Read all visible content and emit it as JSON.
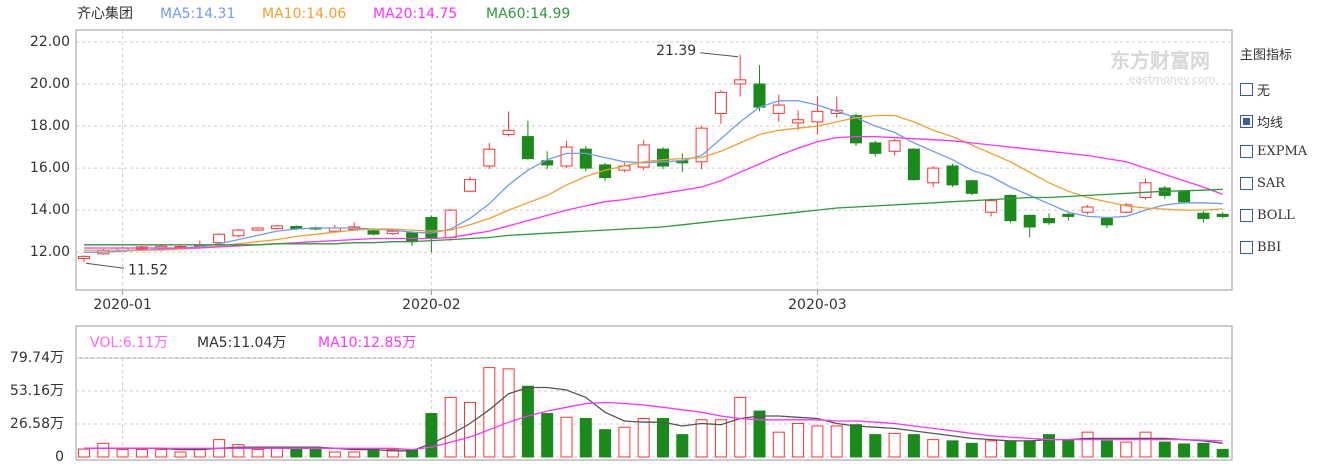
{
  "chart_data": [
    {
      "type": "candlestick",
      "title": "齐心集团",
      "categories": [
        null,
        null,
        "2020-01",
        null,
        null,
        null,
        null,
        null,
        null,
        null,
        null,
        null,
        null,
        null,
        null,
        null,
        null,
        null,
        "2020-02",
        null,
        null,
        null,
        null,
        null,
        null,
        null,
        null,
        null,
        null,
        null,
        null,
        null,
        null,
        null,
        null,
        null,
        null,
        null,
        "2020-03",
        null,
        null,
        null,
        null,
        null,
        null,
        null,
        null,
        null,
        null,
        null,
        null,
        null,
        null,
        null,
        null,
        null,
        null,
        null,
        null,
        null
      ],
      "open": [
        11.7,
        11.92,
        12.1,
        12.15,
        12.2,
        12.22,
        12.28,
        12.45,
        12.78,
        13.05,
        13.12,
        13.22,
        13.16,
        13.0,
        13.08,
        13.02,
        12.88,
        12.92,
        13.65,
        12.7,
        14.9,
        16.1,
        17.6,
        17.5,
        16.35,
        16.1,
        16.9,
        16.15,
        15.9,
        16.05,
        16.9,
        16.35,
        16.3,
        18.6,
        20.0,
        20.0,
        18.6,
        18.15,
        18.2,
        18.6,
        18.5,
        17.2,
        16.8,
        16.9,
        15.3,
        16.1,
        15.4,
        13.9,
        14.7,
        13.75,
        13.6,
        13.8,
        13.9,
        13.6,
        13.9,
        14.6,
        15.05,
        14.9,
        13.85,
        13.8
      ],
      "high": [
        11.85,
        12.15,
        12.25,
        12.3,
        12.35,
        12.35,
        12.55,
        12.9,
        13.1,
        13.2,
        13.3,
        13.28,
        13.22,
        13.3,
        13.42,
        13.08,
        13.1,
        13.0,
        13.75,
        14.05,
        15.6,
        17.2,
        18.7,
        18.25,
        16.8,
        17.3,
        17.05,
        16.25,
        16.25,
        17.35,
        17.0,
        16.7,
        18.0,
        19.7,
        21.39,
        20.9,
        19.5,
        18.75,
        19.4,
        19.4,
        18.6,
        17.3,
        17.4,
        16.95,
        16.1,
        16.2,
        15.45,
        14.55,
        14.75,
        13.8,
        13.85,
        13.9,
        14.25,
        13.65,
        14.35,
        15.5,
        15.15,
        14.95,
        13.95,
        13.9
      ],
      "low": [
        11.52,
        11.88,
        12.05,
        12.1,
        12.15,
        12.18,
        12.22,
        12.4,
        12.7,
        13.0,
        13.08,
        13.05,
        13.05,
        12.95,
        13.02,
        12.8,
        12.82,
        12.3,
        12.0,
        12.55,
        14.85,
        15.95,
        17.5,
        16.4,
        15.95,
        16.0,
        15.85,
        15.4,
        15.8,
        15.9,
        15.95,
        15.8,
        15.95,
        18.1,
        19.4,
        18.7,
        18.2,
        17.8,
        17.6,
        18.4,
        17.05,
        16.55,
        16.6,
        15.4,
        15.1,
        15.1,
        14.7,
        13.7,
        13.4,
        12.7,
        13.3,
        13.5,
        13.8,
        13.15,
        13.85,
        14.5,
        14.55,
        14.3,
        13.4,
        13.6
      ],
      "close": [
        11.8,
        12.08,
        12.2,
        12.25,
        12.28,
        12.27,
        12.33,
        12.85,
        13.05,
        13.15,
        13.25,
        13.12,
        13.1,
        13.15,
        13.2,
        12.86,
        13.0,
        12.55,
        12.65,
        14.0,
        15.45,
        16.9,
        17.8,
        16.45,
        16.15,
        17.0,
        16.0,
        15.55,
        16.1,
        17.1,
        16.1,
        16.25,
        17.9,
        19.6,
        20.2,
        18.9,
        19.0,
        18.3,
        18.7,
        18.75,
        17.2,
        16.7,
        17.3,
        15.45,
        16.0,
        15.2,
        14.8,
        14.45,
        13.5,
        13.2,
        13.4,
        13.7,
        14.15,
        13.3,
        14.25,
        15.3,
        14.7,
        14.4,
        13.6,
        13.7
      ],
      "up_color": "#ff3333",
      "down_color": "#1a8a1a",
      "ylim": [
        10.2,
        22.57
      ],
      "yticks": [
        {
          "value": 12,
          "label": "12.00"
        },
        {
          "value": 14,
          "label": "14.00"
        },
        {
          "value": 16,
          "label": "16.00"
        },
        {
          "value": 18,
          "label": "18.00"
        },
        {
          "value": 20,
          "label": "20.00"
        },
        {
          "value": 22,
          "label": "22.00"
        }
      ],
      "grid": true,
      "series": [
        {
          "name": "MA5:",
          "last": 14.31,
          "color": "#6f9cf0",
          "values": [
            12.0,
            12.0,
            12.05,
            12.1,
            12.15,
            12.2,
            12.25,
            12.4,
            12.6,
            12.8,
            13.0,
            13.1,
            13.15,
            13.15,
            13.15,
            13.1,
            13.05,
            12.95,
            12.9,
            13.1,
            13.6,
            14.3,
            15.2,
            15.9,
            16.4,
            16.7,
            16.7,
            16.5,
            16.3,
            16.25,
            16.3,
            16.35,
            16.6,
            17.4,
            18.2,
            18.9,
            19.2,
            19.2,
            19.0,
            18.7,
            18.4,
            18.0,
            17.7,
            17.2,
            16.8,
            16.4,
            15.9,
            15.6,
            15.1,
            14.7,
            14.3,
            13.9,
            13.7,
            13.65,
            13.7,
            14.0,
            14.25,
            14.35,
            14.35,
            14.31
          ]
        },
        {
          "name": "MA10:",
          "last": 14.06,
          "color": "#f0a030",
          "values": [
            12.1,
            12.1,
            12.1,
            12.1,
            12.1,
            12.15,
            12.2,
            12.3,
            12.4,
            12.5,
            12.6,
            12.75,
            12.85,
            12.95,
            13.05,
            13.1,
            13.1,
            13.05,
            13.0,
            13.05,
            13.3,
            13.6,
            14.0,
            14.35,
            14.7,
            15.2,
            15.6,
            15.9,
            16.1,
            16.3,
            16.4,
            16.45,
            16.5,
            16.8,
            17.2,
            17.6,
            17.8,
            17.9,
            18.0,
            18.2,
            18.4,
            18.5,
            18.5,
            18.2,
            17.8,
            17.5,
            17.1,
            16.7,
            16.3,
            15.8,
            15.3,
            14.9,
            14.6,
            14.4,
            14.2,
            14.1,
            14.05,
            14.0,
            14.0,
            14.06
          ]
        },
        {
          "name": "MA20:",
          "last": 14.75,
          "color": "#ff33ff",
          "values": [
            12.2,
            12.2,
            12.2,
            12.2,
            12.2,
            12.2,
            12.2,
            12.25,
            12.3,
            12.35,
            12.4,
            12.45,
            12.5,
            12.55,
            12.6,
            12.65,
            12.65,
            12.65,
            12.65,
            12.7,
            12.85,
            13.0,
            13.25,
            13.5,
            13.75,
            14.0,
            14.2,
            14.4,
            14.5,
            14.65,
            14.8,
            14.95,
            15.1,
            15.4,
            15.8,
            16.2,
            16.6,
            16.95,
            17.25,
            17.45,
            17.5,
            17.5,
            17.45,
            17.4,
            17.35,
            17.3,
            17.2,
            17.1,
            17.0,
            16.9,
            16.8,
            16.7,
            16.6,
            16.45,
            16.3,
            16.0,
            15.7,
            15.4,
            15.1,
            14.75
          ]
        },
        {
          "name": "MA60:",
          "last": 14.99,
          "color": "#2e9a3a",
          "values": [
            12.35,
            12.35,
            12.35,
            12.35,
            12.35,
            12.35,
            12.35,
            12.35,
            12.35,
            12.35,
            12.4,
            12.4,
            12.4,
            12.4,
            12.45,
            12.45,
            12.5,
            12.5,
            12.55,
            12.6,
            12.65,
            12.7,
            12.8,
            12.85,
            12.9,
            12.95,
            13.0,
            13.05,
            13.1,
            13.15,
            13.2,
            13.3,
            13.4,
            13.5,
            13.6,
            13.7,
            13.8,
            13.9,
            14.0,
            14.1,
            14.15,
            14.2,
            14.25,
            14.3,
            14.35,
            14.4,
            14.45,
            14.5,
            14.55,
            14.6,
            14.6,
            14.65,
            14.7,
            14.75,
            14.8,
            14.85,
            14.9,
            14.92,
            14.95,
            14.99
          ]
        }
      ]
    },
    {
      "type": "volume",
      "name": "VOL:",
      "last": 6.11,
      "last_label": "6.11万",
      "color": "#ff66ff",
      "values": [
        6.4,
        11,
        6,
        6,
        6,
        4,
        6,
        14,
        10,
        6,
        8,
        7,
        8,
        4,
        4,
        6,
        6,
        6,
        35,
        48,
        44,
        72,
        71,
        57,
        35,
        32,
        31,
        22,
        24,
        31,
        31,
        18,
        30,
        30,
        48,
        37,
        20,
        27,
        25,
        25,
        26,
        18,
        19,
        18,
        14,
        13,
        11,
        13,
        13,
        13,
        18,
        14,
        20,
        13,
        12,
        20,
        12,
        10.5,
        11,
        6.11
      ],
      "ylim": [
        0,
        79.74
      ],
      "yticks": [
        0,
        {
          "value": 26.58,
          "label": "26.58万"
        },
        {
          "value": 53.16,
          "label": "53.16万"
        },
        {
          "value": 79.74,
          "label": "79.74万"
        }
      ],
      "grid": true,
      "series": [
        {
          "name": "MA5:",
          "last": 11.04,
          "last_label": "11.04万",
          "color": "#555555",
          "values": [
            7,
            7,
            7,
            7,
            7,
            6,
            6,
            7,
            8,
            8,
            8,
            8,
            8,
            7,
            6,
            6,
            5,
            5,
            11,
            18,
            27,
            38,
            51,
            56,
            56,
            54,
            48,
            36,
            29,
            28,
            28,
            25,
            27,
            26,
            31,
            33,
            33,
            32,
            31,
            27,
            25,
            24,
            23,
            21,
            19,
            17,
            15,
            14,
            13,
            13,
            14,
            14,
            15,
            15,
            15,
            15,
            15,
            14,
            13,
            11.04
          ]
        },
        {
          "name": "MA10:",
          "last": 12.85,
          "last_label": "12.85万",
          "color": "#ff33ff",
          "values": [
            7,
            7,
            7,
            7,
            7,
            7,
            7,
            7,
            7,
            7,
            7,
            7,
            7,
            7,
            7,
            7,
            7,
            6,
            8,
            12,
            16,
            22,
            28,
            33,
            37,
            40,
            43,
            44,
            43,
            42,
            40,
            38,
            36,
            33,
            31,
            30,
            30,
            30,
            30,
            29,
            29,
            28,
            27,
            25,
            23,
            21,
            19,
            17,
            16,
            15,
            14,
            14,
            14,
            14,
            14,
            14,
            14,
            14,
            13.5,
            12.85
          ]
        }
      ]
    }
  ],
  "watermark": {
    "name": "东方财富网",
    "url": "eastmoney.com"
  },
  "indicator_panel": {
    "title": "主图指标",
    "options": [
      {
        "label": "无",
        "checked": false
      },
      {
        "label": "均线",
        "checked": true
      },
      {
        "label": "EXPMA",
        "checked": false
      },
      {
        "label": "SAR",
        "checked": false
      },
      {
        "label": "BOLL",
        "checked": false
      },
      {
        "label": "BBI",
        "checked": false
      }
    ]
  }
}
